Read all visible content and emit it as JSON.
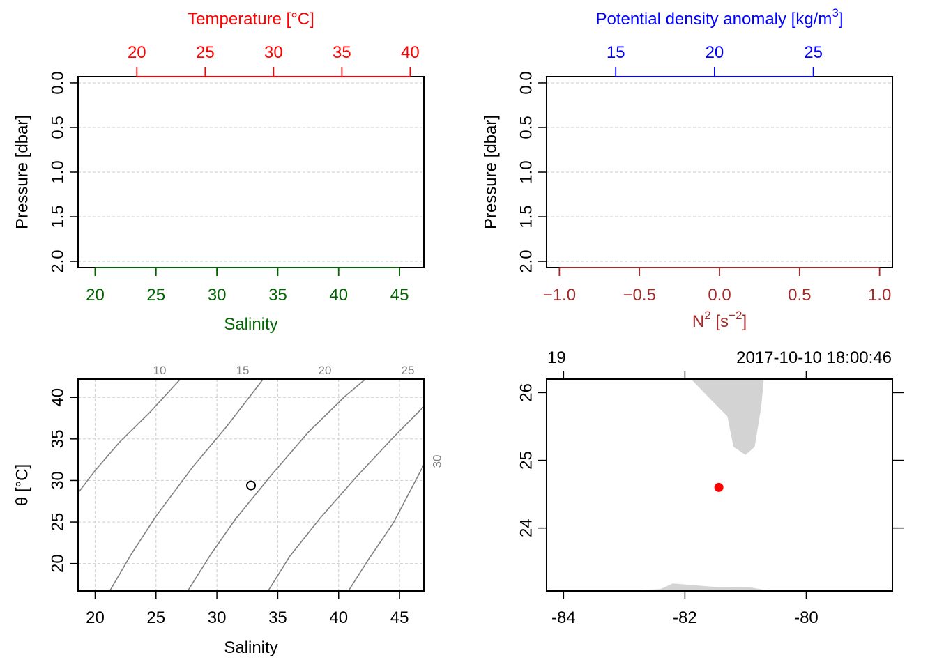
{
  "colors": {
    "temperature": "#ff0000",
    "density": "#0000ff",
    "salinity": "#006400",
    "n2": "#a52a2a",
    "grid": "#d3d3d3",
    "isopycnal": "#808080",
    "land": "#d3d3d3",
    "station": "#ff0000"
  },
  "chart_data": [
    {
      "id": "profile_ts",
      "type": "line",
      "series": [],
      "top_axis": {
        "label": "Temperature [°C]",
        "ticks": [
          20,
          25,
          30,
          35,
          40
        ],
        "range": [
          15.7,
          41
        ]
      },
      "bottom_axis": {
        "label": "Salinity",
        "ticks": [
          20,
          25,
          30,
          35,
          40,
          45
        ],
        "range": [
          18.6,
          47
        ]
      },
      "y_axis": {
        "label": "Pressure [dbar]",
        "ticks": [
          "0.0",
          "0.5",
          "1.0",
          "1.5",
          "2.0"
        ],
        "tick_values": [
          0,
          0.5,
          1,
          1.5,
          2
        ],
        "range": [
          2.07,
          -0.07
        ],
        "reversed": true
      },
      "grid": true
    },
    {
      "id": "profile_density_n2",
      "type": "line",
      "series": [],
      "top_axis": {
        "label": "Potential density anomaly [kg/m",
        "label_sup": "3",
        "label_end": "]",
        "ticks": [
          15,
          20,
          25
        ],
        "range": [
          11.5,
          29
        ]
      },
      "bottom_axis": {
        "label": "N",
        "label_sup": "2",
        "label_mid": " [s",
        "label_sup2": "−2",
        "label_end": "]",
        "ticks": [
          "−1.0",
          "−0.5",
          "0.0",
          "0.5",
          "1.0"
        ],
        "tick_values": [
          -1,
          -0.5,
          0,
          0.5,
          1
        ],
        "range": [
          -1.08,
          1.08
        ]
      },
      "y_axis": {
        "label": "Pressure [dbar]",
        "ticks": [
          "0.0",
          "0.5",
          "1.0",
          "1.5",
          "2.0"
        ],
        "tick_values": [
          0,
          0.5,
          1,
          1.5,
          2
        ],
        "range": [
          2.07,
          -0.07
        ],
        "reversed": true
      },
      "grid": true
    },
    {
      "id": "ts_diagram",
      "type": "scatter",
      "x_axis": {
        "label": "Salinity",
        "ticks": [
          20,
          25,
          30,
          35,
          40,
          45
        ],
        "range": [
          18.6,
          47
        ]
      },
      "y_axis": {
        "label": "θ [°C]",
        "ticks": [
          20,
          25,
          30,
          35,
          40
        ],
        "range": [
          16.7,
          42.2
        ]
      },
      "isopycnals": [
        {
          "sigma": 10,
          "label": "10",
          "points": [
            [
              18.6,
              28.5
            ],
            [
              20,
              31.2
            ],
            [
              22,
              34.6
            ],
            [
              24.5,
              38.2
            ],
            [
              27,
              42.2
            ]
          ]
        },
        {
          "sigma": 15,
          "label": "15",
          "points": [
            [
              21.2,
              16.7
            ],
            [
              23,
              21.2
            ],
            [
              25,
              25.7
            ],
            [
              28,
              31.6
            ],
            [
              30.8,
              36.5
            ],
            [
              33.8,
              42.2
            ]
          ]
        },
        {
          "sigma": 20,
          "label": "20",
          "points": [
            [
              27.6,
              16.7
            ],
            [
              29.5,
              21.1
            ],
            [
              31.5,
              25.3
            ],
            [
              34.5,
              30.7
            ],
            [
              37.5,
              35.8
            ],
            [
              40.5,
              40.1
            ],
            [
              42.2,
              42.2
            ]
          ]
        },
        {
          "sigma": 25,
          "label": "25",
          "points": [
            [
              34.2,
              16.7
            ],
            [
              36,
              20.9
            ],
            [
              38.5,
              25.5
            ],
            [
              41.5,
              30.5
            ],
            [
              44.5,
              35.2
            ],
            [
              47,
              38.9
            ],
            [
              47.5,
              42.2
            ]
          ]
        },
        {
          "sigma": 30,
          "label": "30",
          "points": [
            [
              40.8,
              16.7
            ],
            [
              42.5,
              20.6
            ],
            [
              44.5,
              24.9
            ],
            [
              47,
              31.9
            ]
          ]
        }
      ],
      "points": [
        {
          "salinity": 32.8,
          "theta": 29.4
        }
      ],
      "grid": true
    },
    {
      "id": "station_map",
      "type": "scatter",
      "station_label": "19",
      "datetime": "2017-10-10 18:00:46",
      "x_axis": {
        "ticks": [
          "-84",
          "-82",
          "-80"
        ],
        "tick_values": [
          -84,
          -82,
          -80
        ],
        "range": [
          -84.28,
          -78.58
        ]
      },
      "y_axis": {
        "ticks": [
          "24",
          "25",
          "26"
        ],
        "tick_values": [
          24,
          25,
          26
        ],
        "range": [
          23.07,
          26.2
        ]
      },
      "station": {
        "lon": -81.44,
        "lat": 24.6
      },
      "land": [
        [
          [
            -81.9,
            26.2
          ],
          [
            -80.7,
            26.2
          ],
          [
            -80.74,
            25.8
          ],
          [
            -80.85,
            25.2
          ],
          [
            -81.0,
            25.08
          ],
          [
            -81.2,
            25.2
          ],
          [
            -81.3,
            25.65
          ],
          [
            -81.5,
            25.83
          ],
          [
            -81.9,
            26.2
          ]
        ],
        [
          [
            -82.9,
            23.07
          ],
          [
            -82.4,
            23.1
          ],
          [
            -82.2,
            23.18
          ],
          [
            -81.5,
            23.13
          ],
          [
            -80.9,
            23.12
          ],
          [
            -80.6,
            23.07
          ],
          [
            -82.9,
            23.07
          ]
        ]
      ]
    }
  ]
}
